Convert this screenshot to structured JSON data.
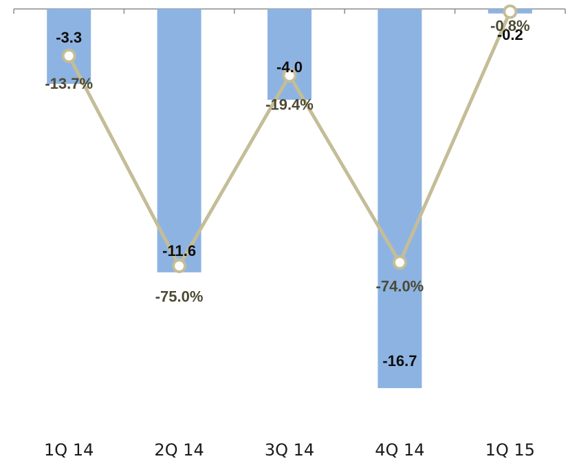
{
  "chart_data": {
    "type": "bar",
    "categories": [
      "1Q 14",
      "2Q 14",
      "3Q 14",
      "4Q 14",
      "1Q 15"
    ],
    "series": [
      {
        "type": "bar",
        "values": [
          -3.3,
          -11.6,
          -4.0,
          -16.7,
          -0.2
        ],
        "labels": [
          "-3.3",
          "-11.6",
          "-4.0",
          "-16.7",
          "-0.2"
        ],
        "color": "#8db3e2"
      },
      {
        "type": "line",
        "values": [
          -13.7,
          -75.0,
          -19.4,
          -74.0,
          -0.8
        ],
        "labels": [
          "-13.7%",
          "-75.0%",
          "-19.4%",
          "-74.0%",
          "-0.8%"
        ],
        "color": "#c4bd97",
        "axis": "secondary"
      }
    ],
    "title": "",
    "xlabel": "",
    "ylabel": "",
    "ylim": [
      -20,
      0
    ],
    "y2lim": [
      -90,
      0
    ],
    "grid": false,
    "legend": "none"
  }
}
